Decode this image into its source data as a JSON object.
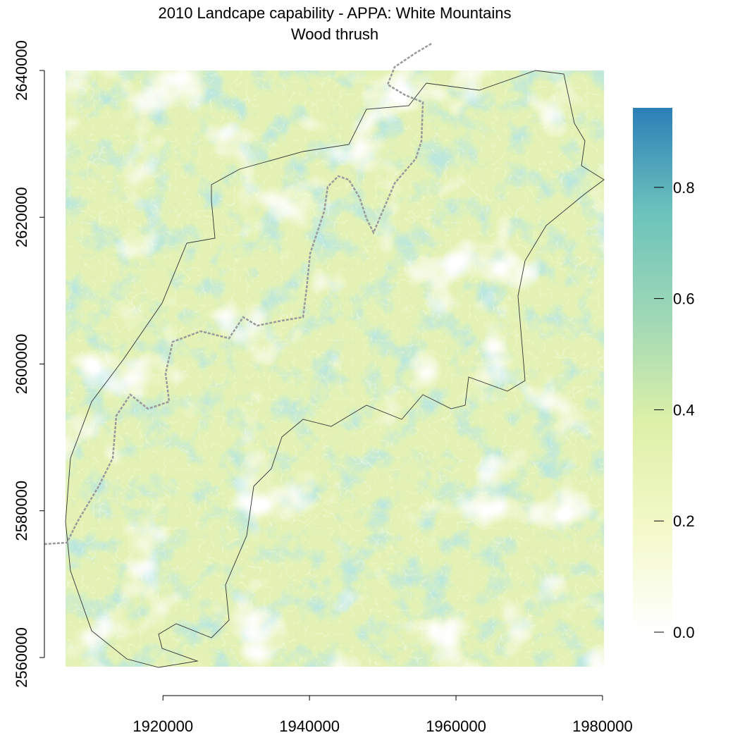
{
  "chart_data": {
    "type": "raster",
    "title": "2010 Landcape capability - APPA: White Mountains",
    "subtitle": "Wood thrush",
    "xlim": [
      1906700,
      1980200
    ],
    "ylim": [
      2558750,
      2640000
    ],
    "xticks": [
      1920000,
      1940000,
      1960000,
      1980000
    ],
    "yticks": [
      2560000,
      2580000,
      2600000,
      2620000,
      2640000
    ],
    "zlim": [
      0,
      0.943
    ],
    "zticks": [
      {
        "value": 0,
        "label": "0.0"
      },
      0.2,
      0.4,
      0.6,
      0.8
    ],
    "colors": [
      "#ffffff",
      "#f3f9c8",
      "#ddf0a8",
      "#9fd8b6",
      "#6cc3bb",
      "#2c7fb8"
    ]
  }
}
